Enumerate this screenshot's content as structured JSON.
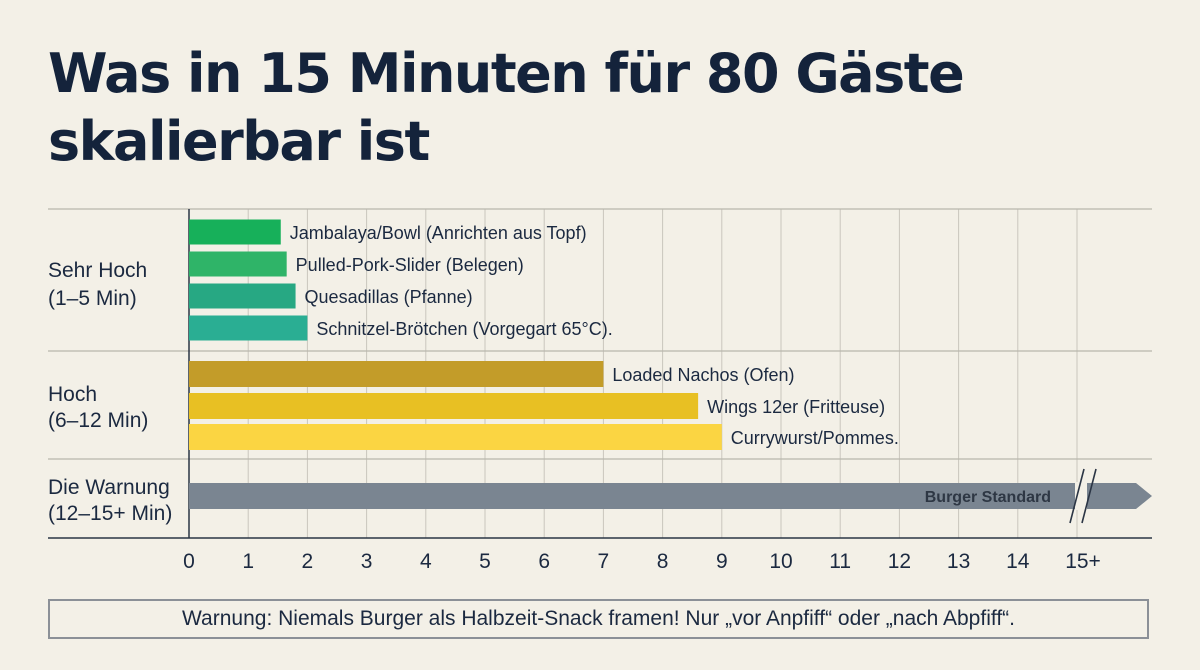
{
  "title": "Was in 15 Minuten für 80 Gäste skalierbar ist",
  "warning_note": "Warnung: Niemals Burger als Halbzeit-Snack framen! Nur „vor Anpfiff“ oder „nach Abpfiff“.",
  "chart_data": {
    "type": "bar",
    "orientation": "horizontal",
    "grid": true,
    "xlim": [
      0,
      16
    ],
    "x_ticks": [
      "0",
      "1",
      "2",
      "3",
      "4",
      "5",
      "6",
      "7",
      "8",
      "9",
      "10",
      "11",
      "12",
      "13",
      "14",
      "15+"
    ],
    "groups": [
      {
        "label_line1": "Sehr Hoch",
        "label_line2": "(1–5 Min)",
        "bars": [
          {
            "label": "Jambalaya/Bowl (Anrichten aus Topf)",
            "value": 1.55,
            "color": "#17b05a"
          },
          {
            "label": "Pulled-Pork-Slider (Belegen)",
            "value": 1.65,
            "color": "#2fb468"
          },
          {
            "label": "Quesadillas (Pfanne)",
            "value": 1.8,
            "color": "#27a883"
          },
          {
            "label": "Schnitzel-Brötchen (Vorgegart 65°C).",
            "value": 2.0,
            "color": "#2aae93"
          }
        ]
      },
      {
        "label_line1": "Hoch",
        "label_line2": "(6–12 Min)",
        "bars": [
          {
            "label": "Loaded Nachos (Ofen)",
            "value": 7.0,
            "color": "#c39c29"
          },
          {
            "label": "Wings 12er (Fritteuse)",
            "value": 8.6,
            "color": "#e8c023"
          },
          {
            "label": "Currywurst/Pommes.",
            "value": 9.0,
            "color": "#fbd542"
          }
        ]
      },
      {
        "label_line1": "Die Warnung",
        "label_line2": "(12–15+ Min)",
        "bars": [
          {
            "label": "Burger Standard",
            "value": 16,
            "color": "#7a8591",
            "arrow": true,
            "axis_break": true
          }
        ]
      }
    ]
  }
}
